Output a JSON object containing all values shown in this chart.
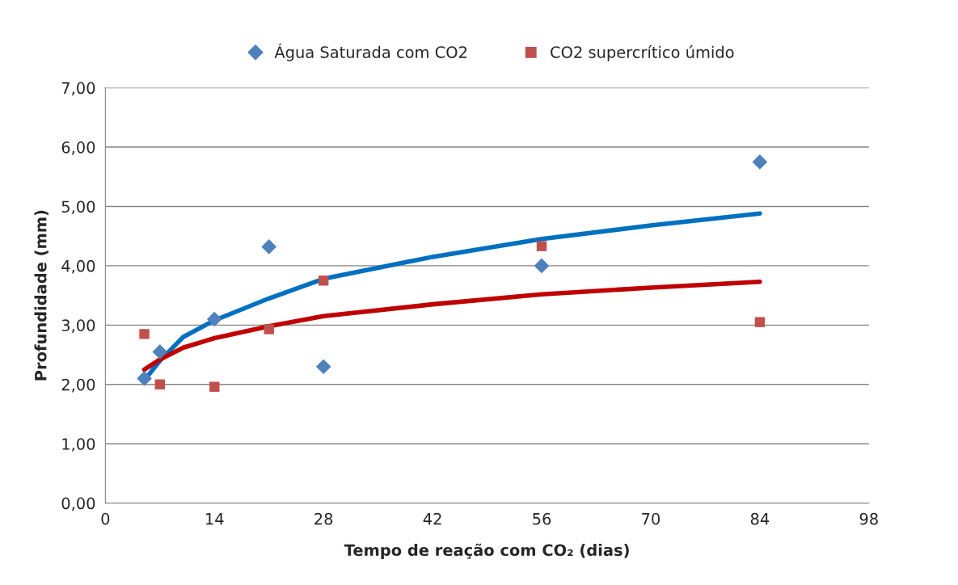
{
  "chart_data": {
    "type": "scatter",
    "xlabel": "Tempo de reação com CO₂ (dias)",
    "ylabel": "Profundidade (mm)",
    "xlim": [
      0,
      98
    ],
    "xticks": [
      0,
      14,
      28,
      42,
      56,
      70,
      84,
      98
    ],
    "ylim": [
      0,
      7
    ],
    "yticks": [
      {
        "value": 0,
        "label": "0,00"
      },
      {
        "value": 1,
        "label": "1,00"
      },
      {
        "value": 2,
        "label": "2,00"
      },
      {
        "value": 3,
        "label": "3,00"
      },
      {
        "value": 4,
        "label": "4,00"
      },
      {
        "value": 5,
        "label": "5,00"
      },
      {
        "value": 6,
        "label": "6,00"
      },
      {
        "value": 7,
        "label": "7,00"
      }
    ],
    "grid": "y",
    "legend": "top",
    "series": [
      {
        "name": "Água Saturada com CO2",
        "marker": "diamond",
        "color": "#4f81bd",
        "x": [
          5,
          7,
          14,
          21,
          28,
          56,
          84
        ],
        "values": [
          2.1,
          2.55,
          3.1,
          4.32,
          2.3,
          4.0,
          5.75
        ]
      },
      {
        "name": "CO2 supercrítico úmido",
        "marker": "square",
        "color": "#c0504d",
        "x": [
          5,
          7,
          14,
          21,
          28,
          56,
          84
        ],
        "values": [
          2.85,
          2.0,
          1.96,
          2.93,
          3.75,
          4.33,
          3.05
        ]
      },
      {
        "type": "line",
        "marker": "none",
        "color": "#0070c0",
        "x": [
          5,
          7,
          10,
          14,
          21,
          28,
          42,
          56,
          70,
          84
        ],
        "values": [
          2.07,
          2.4,
          2.8,
          3.08,
          3.45,
          3.78,
          4.15,
          4.45,
          4.68,
          4.88
        ]
      },
      {
        "type": "line",
        "marker": "none",
        "color": "#c00000",
        "x": [
          5,
          7,
          10,
          14,
          21,
          28,
          42,
          56,
          70,
          84
        ],
        "values": [
          2.25,
          2.42,
          2.62,
          2.78,
          2.98,
          3.15,
          3.35,
          3.52,
          3.63,
          3.73
        ]
      }
    ]
  }
}
